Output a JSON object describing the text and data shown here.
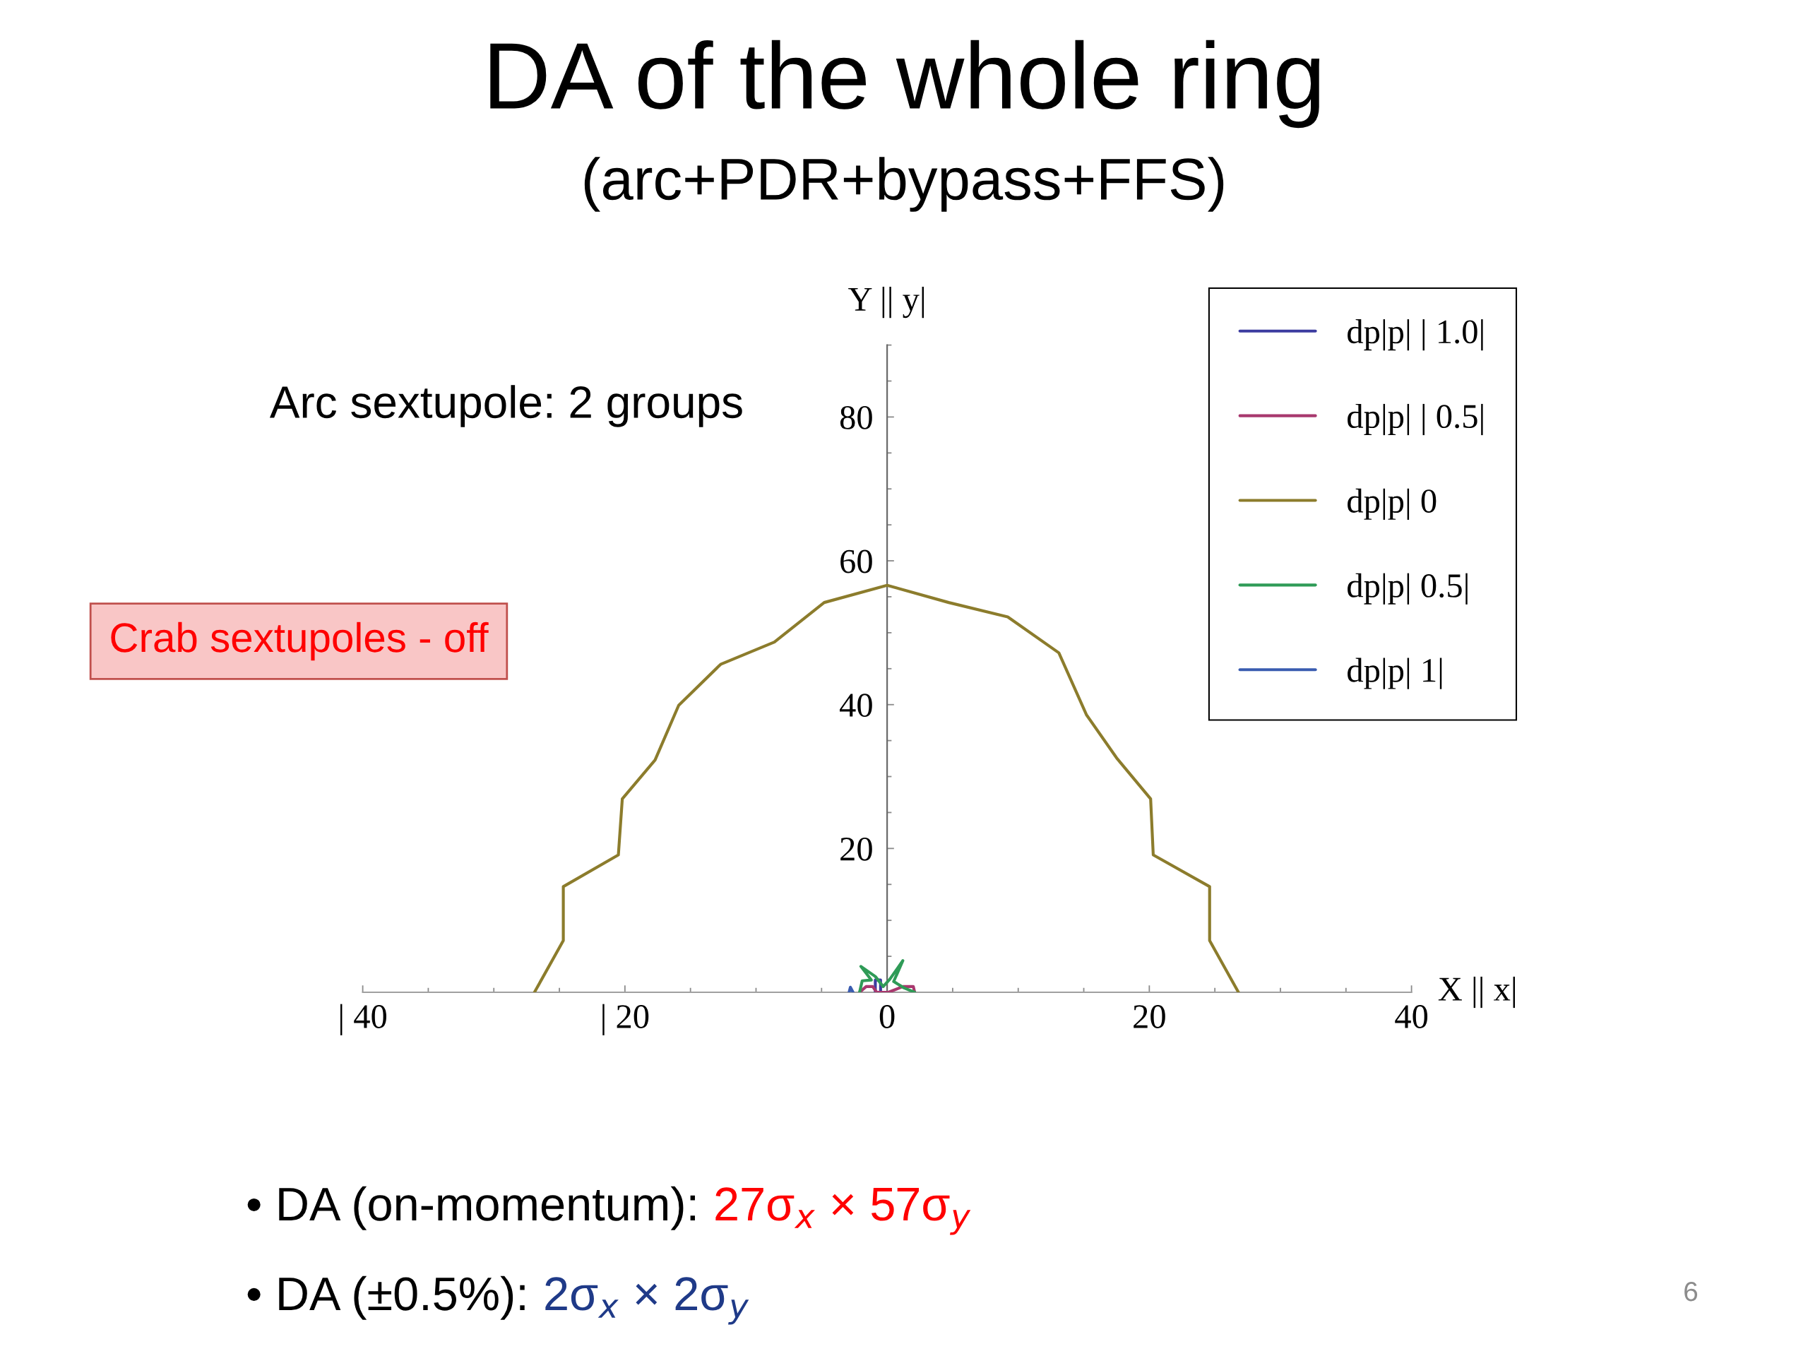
{
  "chart_data": {
    "type": "line",
    "title": "DA of the whole ring",
    "subtitle": "(arc+PDR+bypass+FFS)",
    "xlabel": "X || x|",
    "ylabel": "Y || y|",
    "series": [
      {
        "name": "dp|p| | 1.0|",
        "color": "#3c3ca0",
        "x": [
          -0.9,
          -0.9,
          -0.5,
          -0.5
        ],
        "values": [
          0,
          1.7,
          1.7,
          0
        ]
      },
      {
        "name": "dp|p| | 0.5|",
        "color": "#a8386e",
        "x": [
          -2.1,
          -1.6,
          -1.1,
          -0.8,
          0.1,
          1.2,
          2.0,
          2.1
        ],
        "values": [
          0,
          0.8,
          0.8,
          0,
          0,
          0.8,
          0.8,
          0
        ]
      },
      {
        "name": "dp|p| 0",
        "color": "#8c7c2c",
        "x": [
          -26.9,
          -24.7,
          -24.7,
          -20.5,
          -20.2,
          -17.7,
          -15.9,
          -12.7,
          -8.6,
          -4.8,
          0,
          4.7,
          9.2,
          13.1,
          15.2,
          17.5,
          20.1,
          20.3,
          24.6,
          24.6,
          26.8
        ],
        "values": [
          0,
          7.2,
          14.7,
          19.1,
          26.9,
          32.3,
          39.9,
          45.6,
          48.7,
          54.2,
          56.6,
          54.2,
          52.2,
          47.2,
          38.6,
          32.6,
          26.9,
          19.1,
          14.7,
          7.2,
          0
        ]
      },
      {
        "name": "dp|p| 0.5|",
        "color": "#2f9b57",
        "x": [
          -2.1,
          -1.9,
          -1.2,
          -2.0,
          -0.9,
          -0.3,
          0.2,
          1.2,
          0.5,
          1.3,
          2.1
        ],
        "values": [
          0,
          1.6,
          1.7,
          3.6,
          2.2,
          0.8,
          1.8,
          4.4,
          1.5,
          0.6,
          0
        ]
      },
      {
        "name": "dp|p| 1|",
        "color": "#3a5cb0",
        "x": [
          -2.9,
          -2.8,
          -2.6
        ],
        "values": [
          0,
          0.7,
          0
        ]
      }
    ],
    "xlim": [
      -40,
      40
    ],
    "ylim": [
      0,
      90
    ],
    "xticks": [
      {
        "value": -40,
        "label": "| 40"
      },
      {
        "value": -35,
        "label": null
      },
      {
        "value": -30,
        "label": null
      },
      {
        "value": -25,
        "label": null
      },
      {
        "value": -20,
        "label": "| 20"
      },
      {
        "value": -15,
        "label": null
      },
      {
        "value": -10,
        "label": null
      },
      {
        "value": -5,
        "label": null
      },
      0,
      {
        "value": 5,
        "label": null
      },
      {
        "value": 10,
        "label": null
      },
      {
        "value": 15,
        "label": null
      },
      20,
      {
        "value": 25,
        "label": null
      },
      {
        "value": 30,
        "label": null
      },
      {
        "value": 35,
        "label": null
      },
      40
    ],
    "yticks": [
      {
        "value": 5,
        "label": null
      },
      {
        "value": 10,
        "label": null
      },
      {
        "value": 15,
        "label": null
      },
      20,
      {
        "value": 25,
        "label": null
      },
      {
        "value": 30,
        "label": null
      },
      {
        "value": 35,
        "label": null
      },
      40,
      {
        "value": 45,
        "label": null
      },
      {
        "value": 50,
        "label": null
      },
      {
        "value": 55,
        "label": null
      },
      60,
      {
        "value": 65,
        "label": null
      },
      {
        "value": 70,
        "label": null
      },
      {
        "value": 75,
        "label": null
      },
      80,
      {
        "value": 85,
        "label": null
      },
      {
        "value": 90,
        "label": null
      }
    ],
    "legend": "top right",
    "line_style": "solid",
    "annotations": [
      "Arc sextupole: 2 groups",
      "Crab sextupoles - off",
      "• DA (on-momentum):",
      "27σ$_{x}$ × 57σ$_{y}$",
      "• DA (±0.5%):",
      "2σ$_{x}$ × 2σ$_{y}$",
      "6"
    ]
  }
}
